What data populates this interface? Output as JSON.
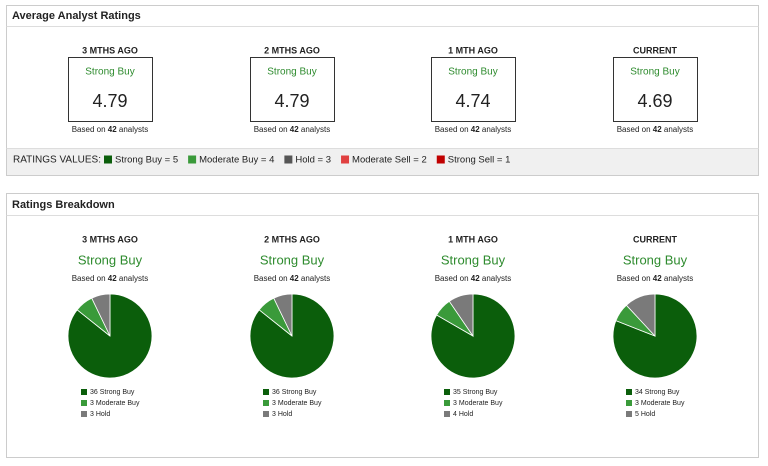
{
  "ratings_panel": {
    "title": "Average Analyst Ratings",
    "periods": [
      {
        "label": "3 MTHS AGO",
        "rating": "Strong Buy",
        "score": 4.79,
        "based_prefix": "Based on",
        "analysts": 42,
        "based_suffix": "analysts"
      },
      {
        "label": "2 MTHS AGO",
        "rating": "Strong Buy",
        "score": 4.79,
        "based_prefix": "Based on",
        "analysts": 42,
        "based_suffix": "analysts"
      },
      {
        "label": "1 MTH AGO",
        "rating": "Strong Buy",
        "score": 4.74,
        "based_prefix": "Based on",
        "analysts": 42,
        "based_suffix": "analysts"
      },
      {
        "label": "CURRENT",
        "rating": "Strong Buy",
        "score": 4.69,
        "based_prefix": "Based on",
        "analysts": 42,
        "based_suffix": "analysts"
      }
    ],
    "legend_title": "RATINGS VALUES:",
    "legend": [
      {
        "label": "Strong Buy = 5",
        "color": "#0b5e0b"
      },
      {
        "label": "Moderate Buy = 4",
        "color": "#3a9a3a"
      },
      {
        "label": "Hold = 3",
        "color": "#555555"
      },
      {
        "label": "Moderate Sell = 2",
        "color": "#e04040"
      },
      {
        "label": "Strong Sell = 1",
        "color": "#c00000"
      }
    ]
  },
  "breakdown_panel": {
    "title": "Ratings Breakdown"
  },
  "chart_data": [
    {
      "type": "pie",
      "title": "3 MTHS AGO",
      "subtitle": "Strong Buy",
      "note_prefix": "Based on",
      "note_count": 42,
      "note_suffix": "analysts",
      "categories": [
        "Strong Buy",
        "Moderate Buy",
        "Hold"
      ],
      "values": [
        36,
        3,
        3
      ],
      "colors": [
        "#0b5e0b",
        "#3a9a3a",
        "#7a7a7a"
      ]
    },
    {
      "type": "pie",
      "title": "2 MTHS AGO",
      "subtitle": "Strong Buy",
      "note_prefix": "Based on",
      "note_count": 42,
      "note_suffix": "analysts",
      "categories": [
        "Strong Buy",
        "Moderate Buy",
        "Hold"
      ],
      "values": [
        36,
        3,
        3
      ],
      "colors": [
        "#0b5e0b",
        "#3a9a3a",
        "#7a7a7a"
      ]
    },
    {
      "type": "pie",
      "title": "1 MTH AGO",
      "subtitle": "Strong Buy",
      "note_prefix": "Based on",
      "note_count": 42,
      "note_suffix": "analysts",
      "categories": [
        "Strong Buy",
        "Moderate Buy",
        "Hold"
      ],
      "values": [
        35,
        3,
        4
      ],
      "colors": [
        "#0b5e0b",
        "#3a9a3a",
        "#7a7a7a"
      ]
    },
    {
      "type": "pie",
      "title": "CURRENT",
      "subtitle": "Strong Buy",
      "note_prefix": "Based on",
      "note_count": 42,
      "note_suffix": "analysts",
      "categories": [
        "Strong Buy",
        "Moderate Buy",
        "Hold"
      ],
      "values": [
        34,
        3,
        5
      ],
      "colors": [
        "#0b5e0b",
        "#3a9a3a",
        "#7a7a7a"
      ]
    }
  ]
}
